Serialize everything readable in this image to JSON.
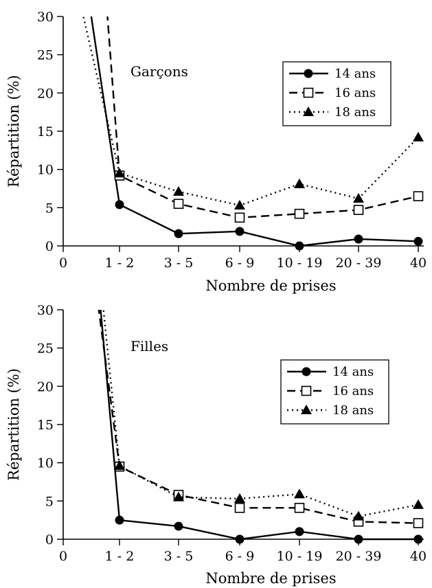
{
  "chart_data": [
    {
      "type": "line",
      "title": "Garçons",
      "xlabel": "Nombre de prises",
      "ylabel": "Répartition (%)",
      "x_origin_label": "0",
      "categories": [
        "1 - 2",
        "3 - 5",
        "6 - 9",
        "10 - 19",
        "20 - 39",
        "40"
      ],
      "ylim": [
        0,
        30
      ],
      "yticks": [
        0,
        5,
        10,
        15,
        20,
        25,
        30
      ],
      "legend_position": "top-right",
      "series": [
        {
          "name": "14 ans",
          "marker": "filled-circle",
          "dash": "solid",
          "values": [
            5.4,
            1.6,
            1.9,
            0.0,
            0.9,
            0.6
          ]
        },
        {
          "name": "16 ans",
          "marker": "open-square",
          "dash": "dashed",
          "values": [
            9.2,
            5.5,
            3.7,
            4.2,
            4.7,
            6.5
          ]
        },
        {
          "name": "18 ans",
          "marker": "filled-triangle",
          "dash": "dotted",
          "values": [
            9.5,
            7.1,
            5.3,
            8.1,
            6.2,
            14.2
          ]
        }
      ]
    },
    {
      "type": "line",
      "title": "Filles",
      "xlabel": "Nombre de prises",
      "ylabel": "Répartition (%)",
      "x_origin_label": "0",
      "categories": [
        "1 - 2",
        "3 - 5",
        "6 - 9",
        "10 - 19",
        "20 - 39",
        "40"
      ],
      "ylim": [
        0,
        30
      ],
      "yticks": [
        0,
        5,
        10,
        15,
        20,
        25,
        30
      ],
      "legend_position": "top-right",
      "series": [
        {
          "name": "14 ans",
          "marker": "filled-circle",
          "dash": "solid",
          "values": [
            2.5,
            1.7,
            0.0,
            1.0,
            0.0,
            0.0
          ]
        },
        {
          "name": "16 ans",
          "marker": "open-square",
          "dash": "dashed",
          "values": [
            9.5,
            5.8,
            4.1,
            4.1,
            2.3,
            2.1
          ]
        },
        {
          "name": "18 ans",
          "marker": "filled-triangle",
          "dash": "dotted",
          "values": [
            9.6,
            5.5,
            5.3,
            5.9,
            3.0,
            4.5
          ]
        }
      ]
    }
  ]
}
